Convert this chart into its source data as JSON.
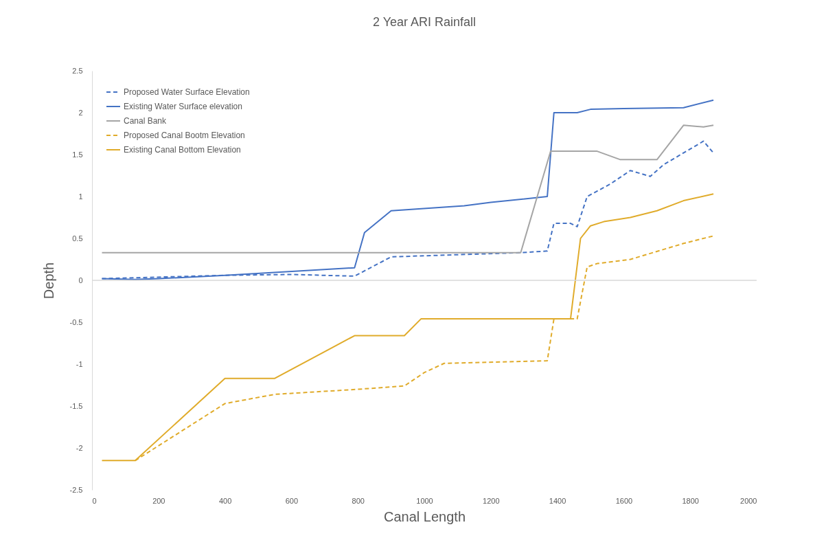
{
  "chart_data": {
    "type": "line",
    "title": "2 Year ARI Rainfall",
    "xlabel": "Canal Length",
    "ylabel": "Depth",
    "xlim": [
      0,
      2000
    ],
    "xticks": [
      0,
      200,
      400,
      600,
      800,
      1000,
      1200,
      1400,
      1600,
      1800,
      2000
    ],
    "ylim": [
      -2.5,
      2.5
    ],
    "yticks": [
      -2.5,
      -2,
      -1.5,
      -1,
      -0.5,
      0,
      0.5,
      1,
      1.5,
      2,
      2.5
    ],
    "grid": false,
    "legend": "top left",
    "marker": "none",
    "ref_lines": [
      {
        "axis": "y",
        "value": 0,
        "color": "#d9d9d9"
      }
    ],
    "series": [
      {
        "name": "Proposed Water Surface Elevation",
        "color": "#4472c4",
        "line_style": "dashed",
        "x": [
          30,
          400,
          600,
          790,
          900,
          1290,
          1370,
          1390,
          1440,
          1460,
          1490,
          1560,
          1620,
          1680,
          1720,
          1840,
          1870
        ],
        "values": [
          0.02,
          0.06,
          0.07,
          0.05,
          0.28,
          0.33,
          0.35,
          0.68,
          0.68,
          0.64,
          1.0,
          1.15,
          1.31,
          1.24,
          1.38,
          1.66,
          1.52
        ]
      },
      {
        "name": "Existing Water Surface elevation",
        "color": "#4472c4",
        "line_style": "solid",
        "x": [
          30,
          130,
          200,
          400,
          790,
          820,
          900,
          1120,
          1200,
          1370,
          1390,
          1460,
          1500,
          1600,
          1780,
          1870
        ],
        "values": [
          0.02,
          0.01,
          0.02,
          0.06,
          0.15,
          0.57,
          0.83,
          0.89,
          0.93,
          1.0,
          2.0,
          2.0,
          2.04,
          2.05,
          2.06,
          2.15
        ]
      },
      {
        "name": "Canal Bank",
        "color": "#a5a5a5",
        "line_style": "solid",
        "x": [
          30,
          1290,
          1380,
          1520,
          1590,
          1700,
          1780,
          1840,
          1870
        ],
        "values": [
          0.33,
          0.33,
          1.54,
          1.54,
          1.44,
          1.44,
          1.85,
          1.83,
          1.85
        ]
      },
      {
        "name": "Proposed Canal Bootm Elevation",
        "color": "#e0ab2a",
        "line_style": "dashed",
        "x": [
          130,
          400,
          550,
          800,
          940,
          1000,
          1060,
          1370,
          1390,
          1460,
          1490,
          1520,
          1620,
          1780,
          1870
        ],
        "values": [
          -2.15,
          -1.47,
          -1.36,
          -1.3,
          -1.26,
          -1.1,
          -0.99,
          -0.96,
          -0.46,
          -0.46,
          0.16,
          0.2,
          0.25,
          0.44,
          0.53
        ]
      },
      {
        "name": "Existing Canal Bottom Elevation",
        "color": "#e0ab2a",
        "line_style": "solid",
        "x": [
          30,
          130,
          400,
          550,
          790,
          940,
          990,
          1440,
          1470,
          1500,
          1540,
          1620,
          1700,
          1780,
          1870
        ],
        "values": [
          -2.15,
          -2.15,
          -1.17,
          -1.17,
          -0.66,
          -0.66,
          -0.46,
          -0.46,
          0.5,
          0.65,
          0.7,
          0.75,
          0.83,
          0.95,
          1.03
        ]
      }
    ]
  }
}
